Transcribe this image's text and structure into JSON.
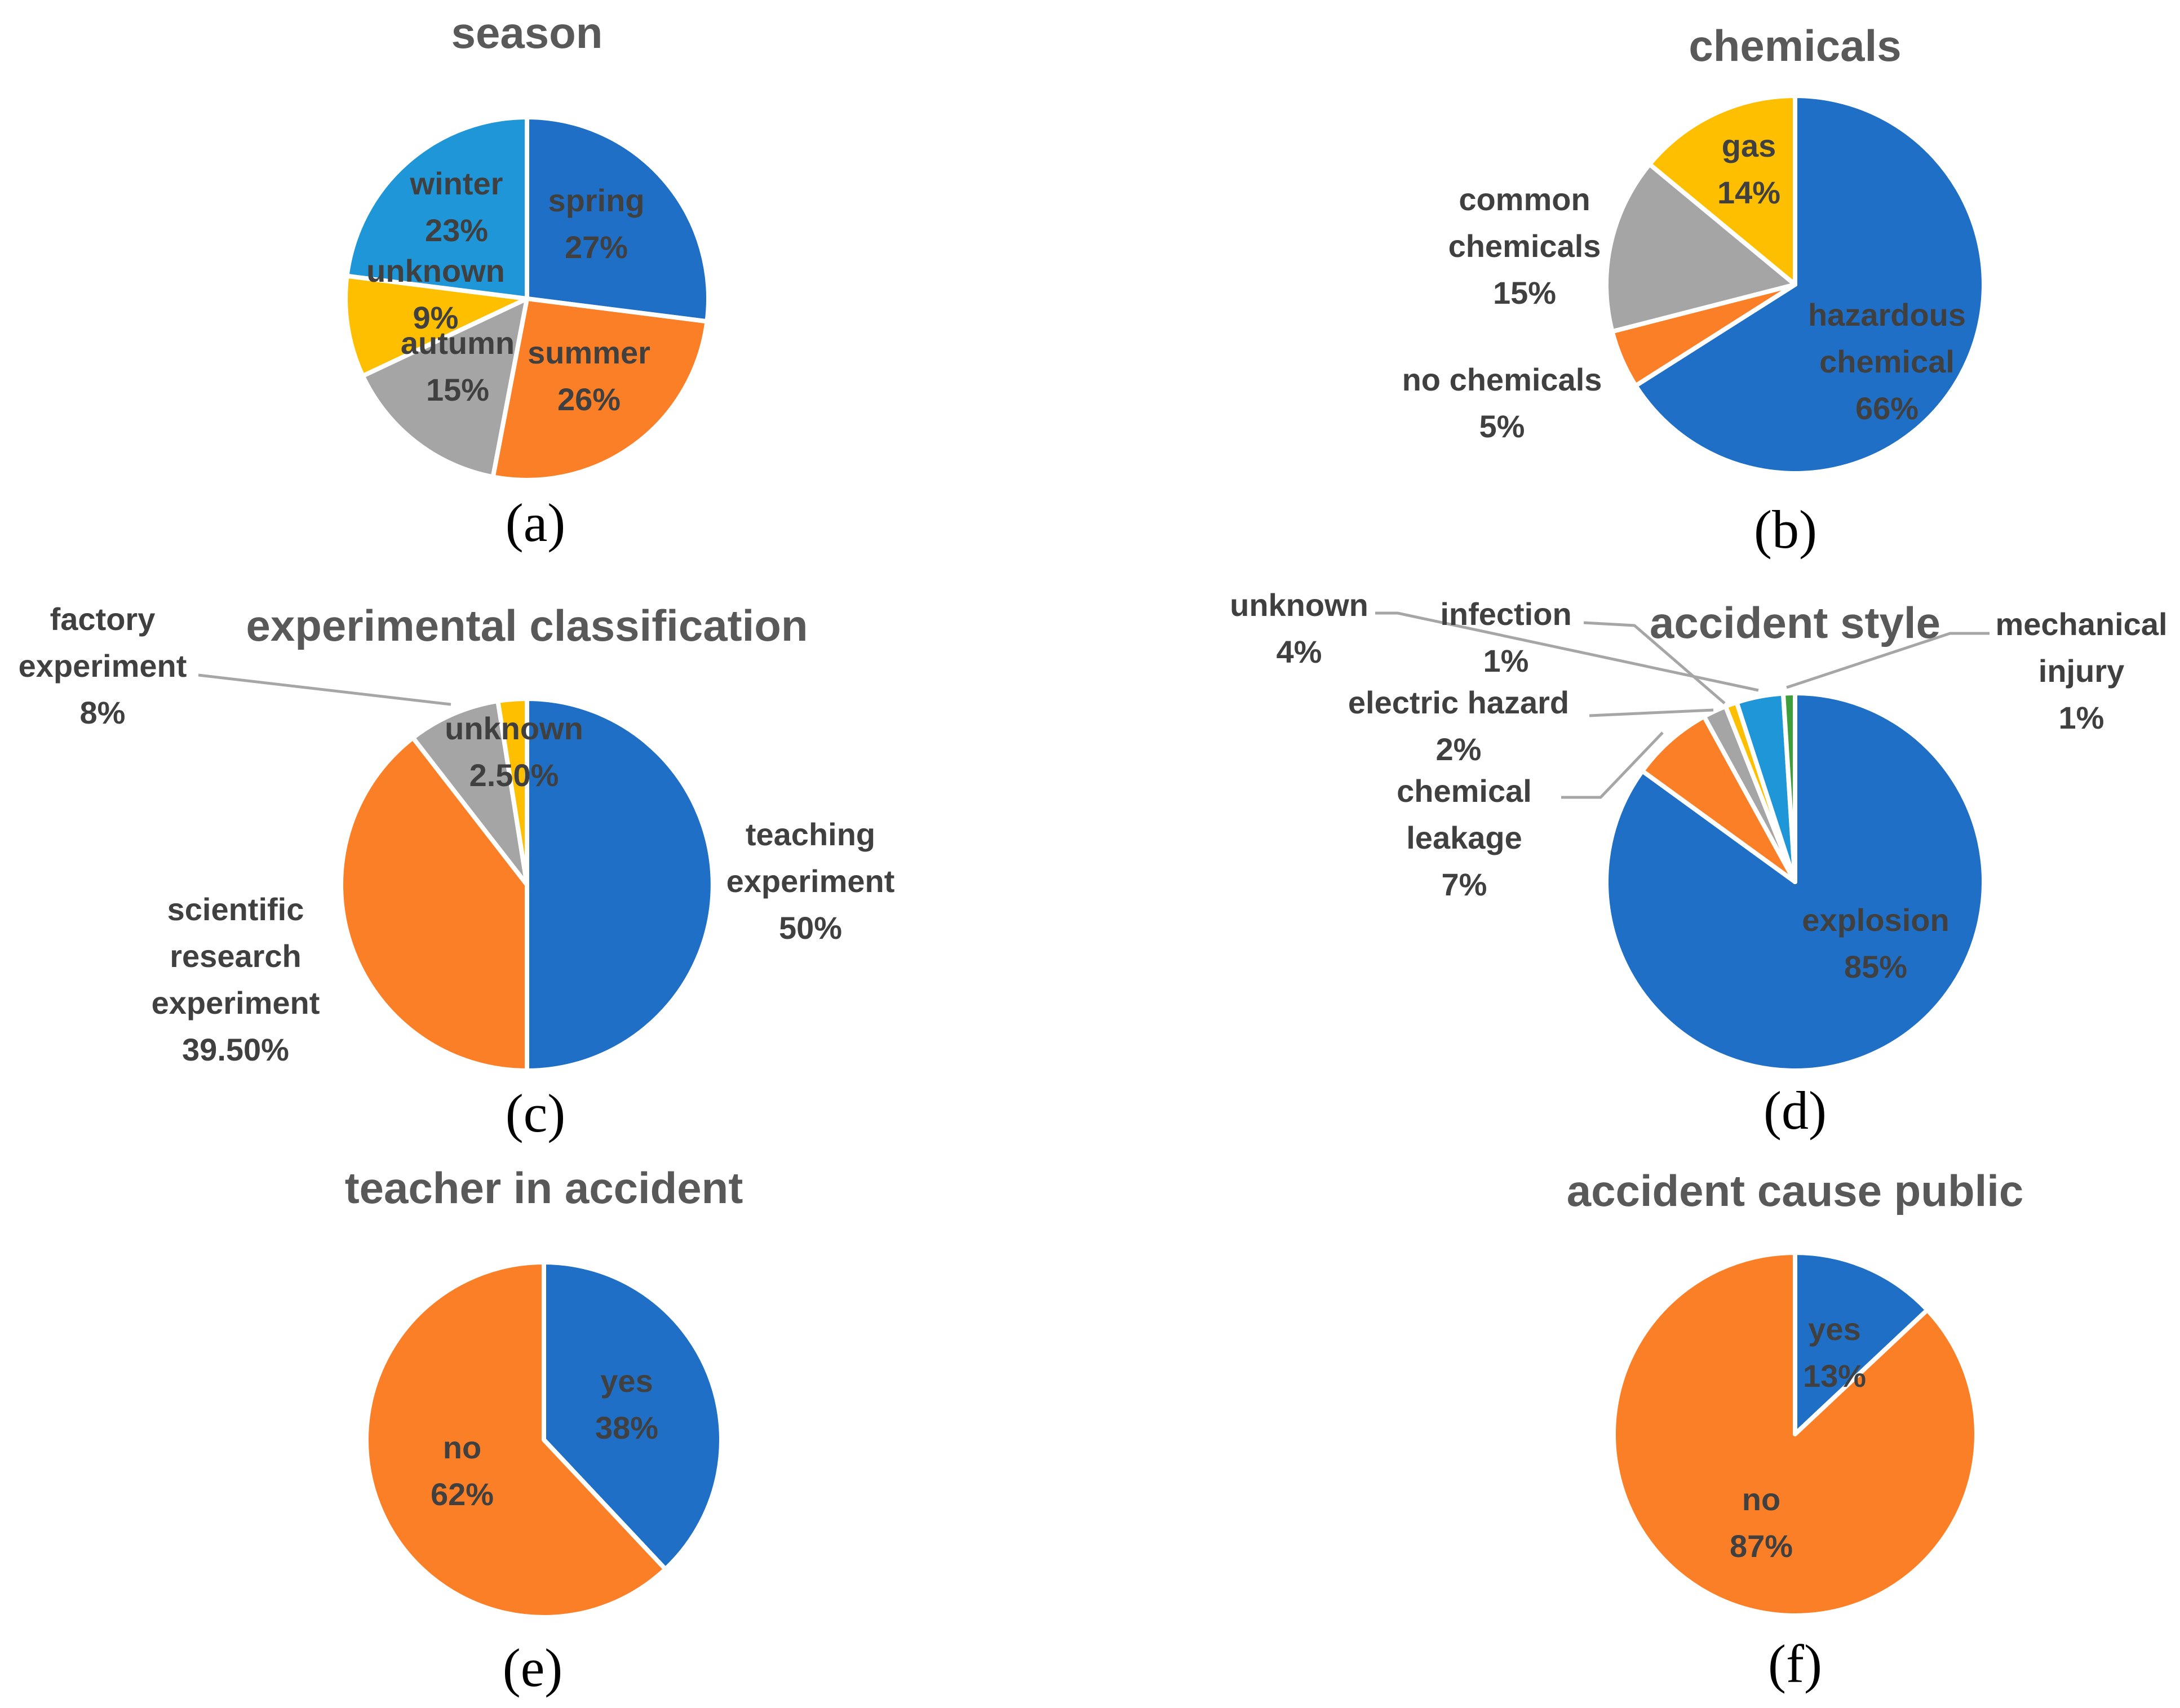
{
  "chart_data": [
    {
      "type": "pie",
      "panel": "(a)",
      "title": "season",
      "slices": [
        {
          "label": "spring",
          "value": 27,
          "pct_text": "27%",
          "color": "#1f6fc6"
        },
        {
          "label": "summer",
          "value": 26,
          "pct_text": "26%",
          "color": "#fb7f26"
        },
        {
          "label": "autumn",
          "value": 15,
          "pct_text": "15%",
          "color": "#a5a5a5"
        },
        {
          "label": "unknown",
          "value": 9,
          "pct_text": "9%",
          "color": "#fdbf00"
        },
        {
          "label": "winter",
          "value": 23,
          "pct_text": "23%",
          "color": "#1e96d8"
        }
      ]
    },
    {
      "type": "pie",
      "panel": "(b)",
      "title": "chemicals",
      "slices": [
        {
          "label": "hazardous chemical",
          "label_lines": [
            "hazardous",
            "chemical"
          ],
          "value": 66,
          "pct_text": "66%",
          "color": "#1f6fc6"
        },
        {
          "label": "no chemicals",
          "label_lines": [
            "no chemicals"
          ],
          "value": 5,
          "pct_text": "5%",
          "color": "#fb7f26"
        },
        {
          "label": "common chemicals",
          "label_lines": [
            "common",
            "chemicals"
          ],
          "value": 15,
          "pct_text": "15%",
          "color": "#a5a5a5"
        },
        {
          "label": "gas",
          "label_lines": [
            "gas"
          ],
          "value": 14,
          "pct_text": "14%",
          "color": "#fdbf00"
        }
      ]
    },
    {
      "type": "pie",
      "panel": "(c)",
      "title": "experimental classification",
      "slices": [
        {
          "label": "teaching experiment",
          "label_lines": [
            "teaching",
            "experiment"
          ],
          "value": 50,
          "pct_text": "50%",
          "color": "#1f6fc6"
        },
        {
          "label": "scientific research experiment",
          "label_lines": [
            "scientific",
            "research",
            "experiment"
          ],
          "value": 39.5,
          "pct_text": "39.50%",
          "color": "#fb7f26"
        },
        {
          "label": "factory experiment",
          "label_lines": [
            "factory",
            "experiment"
          ],
          "value": 8,
          "pct_text": "8%",
          "color": "#a5a5a5"
        },
        {
          "label": "unknown",
          "label_lines": [
            "unknown"
          ],
          "value": 2.5,
          "pct_text": "2.50%",
          "color": "#fdbf00"
        }
      ]
    },
    {
      "type": "pie",
      "panel": "(d)",
      "title": "accident style",
      "slices": [
        {
          "label": "explosion",
          "label_lines": [
            "explosion"
          ],
          "value": 85,
          "pct_text": "85%",
          "color": "#1f6fc6"
        },
        {
          "label": "chemical leakage",
          "label_lines": [
            "chemical",
            "leakage"
          ],
          "value": 7,
          "pct_text": "7%",
          "color": "#fb7f26"
        },
        {
          "label": "electric hazard",
          "label_lines": [
            "electric hazard"
          ],
          "value": 2,
          "pct_text": "2%",
          "color": "#a5a5a5"
        },
        {
          "label": "infection",
          "label_lines": [
            "infection"
          ],
          "value": 1,
          "pct_text": "1%",
          "color": "#fdbf00"
        },
        {
          "label": "unknown",
          "label_lines": [
            "unknown"
          ],
          "value": 4,
          "pct_text": "4%",
          "color": "#1e96d8"
        },
        {
          "label": "mechanical injury",
          "label_lines": [
            "mechanical",
            "injury"
          ],
          "value": 1,
          "pct_text": "1%",
          "color": "#3e9e3b"
        }
      ]
    },
    {
      "type": "pie",
      "panel": "(e)",
      "title": "teacher in accident",
      "slices": [
        {
          "label": "yes",
          "label_lines": [
            "yes"
          ],
          "value": 38,
          "pct_text": "38%",
          "color": "#1f6fc6"
        },
        {
          "label": "no",
          "label_lines": [
            "no"
          ],
          "value": 62,
          "pct_text": "62%",
          "color": "#fb7f26"
        }
      ]
    },
    {
      "type": "pie",
      "panel": "(f)",
      "title": "accident cause public",
      "slices": [
        {
          "label": "yes",
          "label_lines": [
            "yes"
          ],
          "value": 13,
          "pct_text": "13%",
          "color": "#1f6fc6"
        },
        {
          "label": "no",
          "label_lines": [
            "no"
          ],
          "value": 87,
          "pct_text": "87%",
          "color": "#fb7f26"
        }
      ]
    }
  ]
}
